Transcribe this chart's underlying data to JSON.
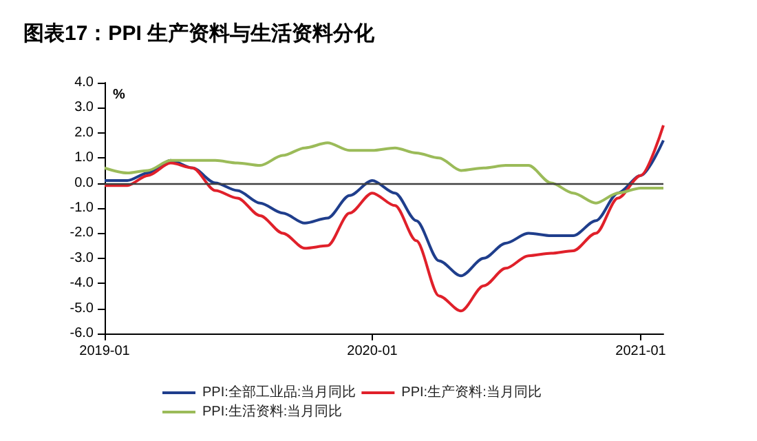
{
  "chart_data": {
    "type": "line",
    "title": "图表17：PPI 生产资料与生活资料分化",
    "ylabel": "%",
    "x": [
      "2019-01",
      "2019-02",
      "2019-03",
      "2019-04",
      "2019-05",
      "2019-06",
      "2019-07",
      "2019-08",
      "2019-09",
      "2019-10",
      "2019-11",
      "2019-12",
      "2020-01",
      "2020-02",
      "2020-03",
      "2020-04",
      "2020-05",
      "2020-06",
      "2020-07",
      "2020-08",
      "2020-09",
      "2020-10",
      "2020-11",
      "2020-12",
      "2021-01",
      "2021-02"
    ],
    "series": [
      {
        "name": "PPI:全部工业品:当月同比",
        "color": "#1f3e8c",
        "values": [
          0.1,
          0.1,
          0.4,
          0.9,
          0.6,
          0.0,
          -0.3,
          -0.8,
          -1.2,
          -1.6,
          -1.4,
          -0.5,
          0.1,
          -0.4,
          -1.5,
          -3.1,
          -3.7,
          -3.0,
          -2.4,
          -2.0,
          -2.1,
          -2.1,
          -1.5,
          -0.4,
          0.3,
          1.7
        ]
      },
      {
        "name": "PPI:生产资料:当月同比",
        "color": "#e0202a",
        "values": [
          -0.1,
          -0.1,
          0.3,
          0.8,
          0.6,
          -0.3,
          -0.6,
          -1.3,
          -2.0,
          -2.6,
          -2.5,
          -1.2,
          -0.4,
          -0.9,
          -2.3,
          -4.5,
          -5.1,
          -4.1,
          -3.4,
          -2.9,
          -2.8,
          -2.7,
          -2.0,
          -0.6,
          0.3,
          2.3
        ]
      },
      {
        "name": "PPI:生活资料:当月同比",
        "color": "#9bbb59",
        "values": [
          0.6,
          0.4,
          0.5,
          0.9,
          0.9,
          0.9,
          0.8,
          0.7,
          1.1,
          1.4,
          1.6,
          1.3,
          1.3,
          1.4,
          1.2,
          1.0,
          0.5,
          0.6,
          0.7,
          0.7,
          0.0,
          -0.4,
          -0.8,
          -0.4,
          -0.2,
          -0.2
        ]
      }
    ],
    "xlim": [
      "2019-01",
      "2021-02"
    ],
    "xticks": [
      "2019-01",
      "2020-01",
      "2021-01"
    ],
    "ylim": [
      -6,
      4
    ],
    "yticks": [
      {
        "value": -6,
        "label": "-6.0"
      },
      {
        "value": -5,
        "label": "-5.0"
      },
      {
        "value": -4,
        "label": "-4.0"
      },
      {
        "value": -3,
        "label": "-3.0"
      },
      {
        "value": -2,
        "label": "-2.0"
      },
      {
        "value": -1,
        "label": "-1.0"
      },
      {
        "value": 0,
        "label": "0.0"
      },
      {
        "value": 1,
        "label": "1.0"
      },
      {
        "value": 2,
        "label": "2.0"
      },
      {
        "value": 3,
        "label": "3.0"
      },
      {
        "value": 4,
        "label": "4.0"
      }
    ],
    "ref_lines": [
      {
        "axis": "y",
        "value": 0,
        "color": "#404040"
      }
    ],
    "grid": false,
    "legend": "bottom",
    "marker": "none",
    "line_style": "solid"
  }
}
